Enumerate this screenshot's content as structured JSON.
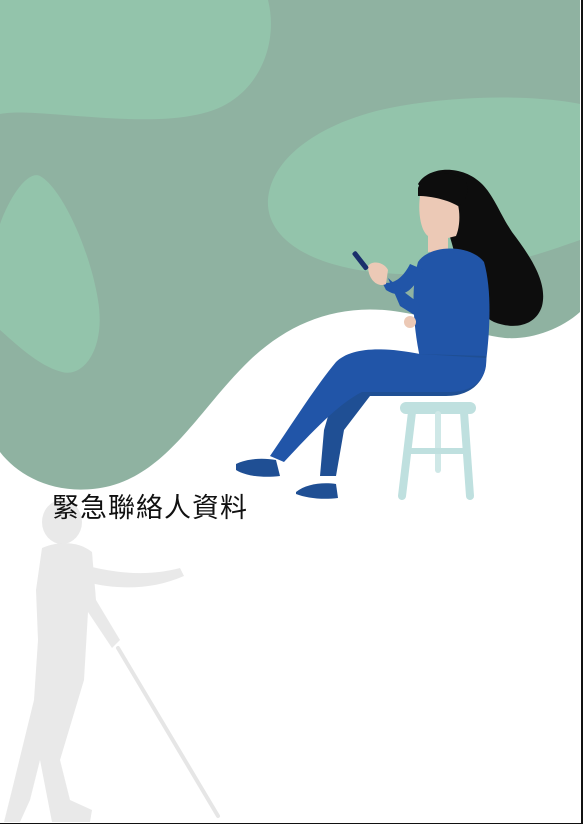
{
  "page": {
    "title": "緊急聯絡人資料"
  },
  "colors": {
    "background": "#ffffff",
    "blob_dark": "#8fb2a1",
    "blob_light": "#93c4ab",
    "sweater": "#2155a8",
    "jeans": "#1f4f94",
    "hair": "#0d0d0d",
    "skin": "#ecc9b6",
    "stool": "#bfe0df",
    "silhouette": "#e9e9e9"
  },
  "illustrations": {
    "background_shape": "green-blob",
    "main_figure": "woman-sitting-on-stool-with-phone",
    "secondary_figure": "person-with-white-cane-silhouette"
  }
}
